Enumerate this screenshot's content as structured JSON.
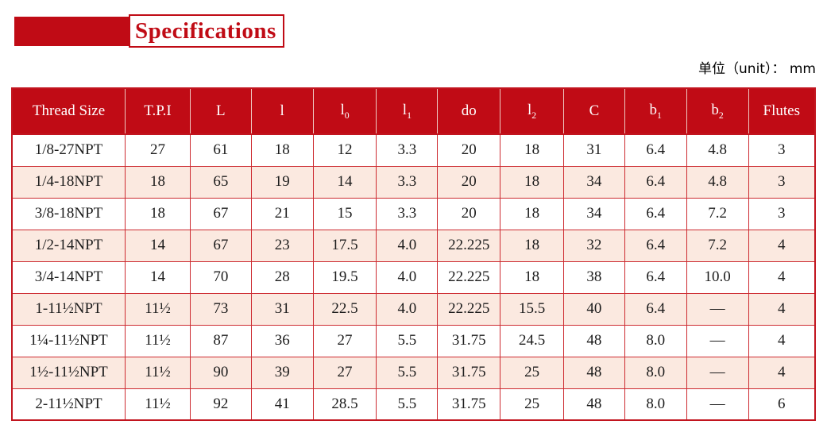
{
  "title": {
    "text": "Specifications"
  },
  "unit_label": "单位（unit）： mm",
  "colors": {
    "accent_red": "#c00b15",
    "grid_red": "#cd2b31",
    "row_pink": "#fbe9e0",
    "header_text": "#ffffff",
    "body_text": "#1c1c1c"
  },
  "table": {
    "columns": [
      {
        "label": "Thread Size",
        "sub": ""
      },
      {
        "label": "T.P.I",
        "sub": ""
      },
      {
        "label": "L",
        "sub": ""
      },
      {
        "label": "l",
        "sub": ""
      },
      {
        "label": "l",
        "sub": "0"
      },
      {
        "label": "l",
        "sub": "1"
      },
      {
        "label": "do",
        "sub": ""
      },
      {
        "label": "l",
        "sub": "2"
      },
      {
        "label": "C",
        "sub": ""
      },
      {
        "label": "b",
        "sub": "1"
      },
      {
        "label": "b",
        "sub": "2"
      },
      {
        "label": "Flutes",
        "sub": ""
      }
    ],
    "col_widths_pct": [
      14.1,
      8.1,
      7.6,
      7.7,
      7.9,
      7.6,
      7.8,
      7.9,
      7.6,
      7.7,
      7.7,
      8.3
    ],
    "rows": [
      [
        "1/8-27NPT",
        "27",
        "61",
        "18",
        "12",
        "3.3",
        "20",
        "18",
        "31",
        "6.4",
        "4.8",
        "3"
      ],
      [
        "1/4-18NPT",
        "18",
        "65",
        "19",
        "14",
        "3.3",
        "20",
        "18",
        "34",
        "6.4",
        "4.8",
        "3"
      ],
      [
        "3/8-18NPT",
        "18",
        "67",
        "21",
        "15",
        "3.3",
        "20",
        "18",
        "34",
        "6.4",
        "7.2",
        "3"
      ],
      [
        "1/2-14NPT",
        "14",
        "67",
        "23",
        "17.5",
        "4.0",
        "22.225",
        "18",
        "32",
        "6.4",
        "7.2",
        "4"
      ],
      [
        "3/4-14NPT",
        "14",
        "70",
        "28",
        "19.5",
        "4.0",
        "22.225",
        "18",
        "38",
        "6.4",
        "10.0",
        "4"
      ],
      [
        "1-11½NPT",
        "11½",
        "73",
        "31",
        "22.5",
        "4.0",
        "22.225",
        "15.5",
        "40",
        "6.4",
        "—",
        "4"
      ],
      [
        "1¼-11½NPT",
        "11½",
        "87",
        "36",
        "27",
        "5.5",
        "31.75",
        "24.5",
        "48",
        "8.0",
        "—",
        "4"
      ],
      [
        "1½-11½NPT",
        "11½",
        "90",
        "39",
        "27",
        "5.5",
        "31.75",
        "25",
        "48",
        "8.0",
        "—",
        "4"
      ],
      [
        "2-11½NPT",
        "11½",
        "92",
        "41",
        "28.5",
        "5.5",
        "31.75",
        "25",
        "48",
        "8.0",
        "—",
        "6"
      ]
    ]
  }
}
